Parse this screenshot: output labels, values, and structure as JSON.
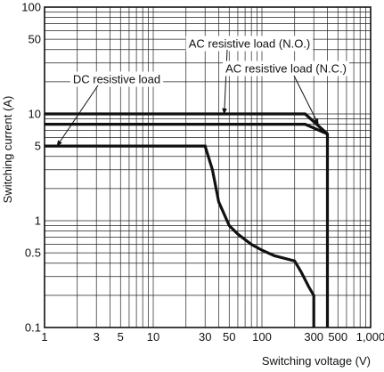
{
  "chart_data": {
    "type": "line",
    "title": "",
    "xlabel": "Switching voltage (V)",
    "ylabel": "Switching current (A)",
    "xscale": "log",
    "yscale": "log",
    "xlim": [
      1,
      1000
    ],
    "ylim": [
      0.1,
      100
    ],
    "grid": true,
    "x_ticks": [
      1,
      3,
      5,
      10,
      30,
      50,
      100,
      300,
      500,
      1000
    ],
    "x_tick_labels": [
      "1",
      "3",
      "5",
      "10",
      "30",
      "50",
      "100",
      "300",
      "500",
      "1,000"
    ],
    "y_ticks": [
      0.1,
      0.5,
      1,
      5,
      10,
      50,
      100
    ],
    "y_tick_labels": [
      "0.1",
      "0.5",
      "1",
      "5",
      "10",
      "50",
      "100"
    ],
    "series": [
      {
        "name": "AC resistive load (N.O.)",
        "x": [
          1,
          250,
          400,
          400
        ],
        "y": [
          10,
          10,
          6.5,
          0.1
        ]
      },
      {
        "name": "AC resistive load (N.C.)",
        "x": [
          1,
          250,
          400
        ],
        "y": [
          8,
          8,
          6.5
        ]
      },
      {
        "name": "DC resistive load",
        "x": [
          1,
          30,
          35,
          40,
          50,
          60,
          80,
          100,
          130,
          200,
          230,
          270,
          300,
          300
        ],
        "y": [
          5,
          5,
          3,
          1.5,
          0.9,
          0.75,
          0.6,
          0.53,
          0.47,
          0.42,
          0.33,
          0.24,
          0.2,
          0.1
        ]
      }
    ],
    "annotations": [
      {
        "text": "AC resistive load (N.O.)",
        "target_series": 0
      },
      {
        "text": "AC resistive load (N.C.)",
        "target_series": 1
      },
      {
        "text": "DC resistive load",
        "target_series": 2
      }
    ]
  }
}
